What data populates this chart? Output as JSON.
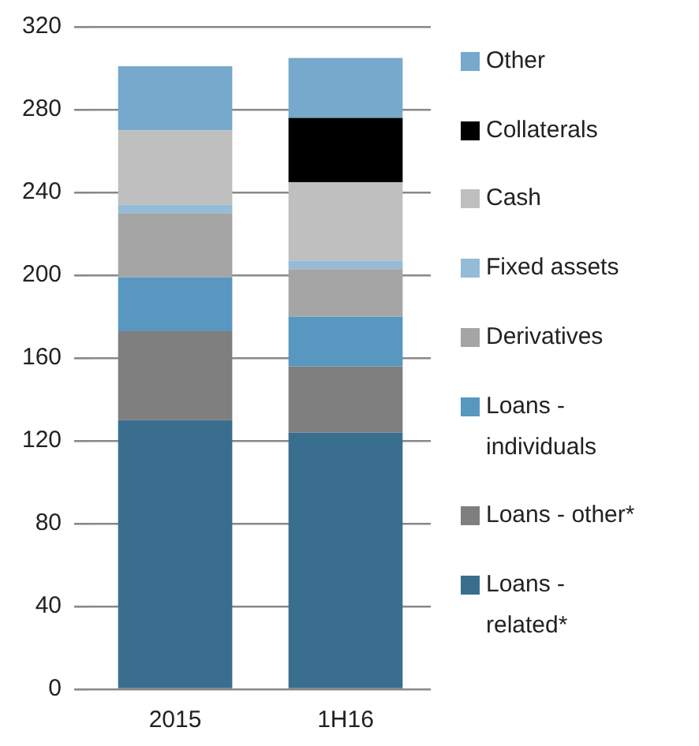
{
  "chart_data": {
    "type": "bar",
    "stacked": true,
    "categories": [
      "2015",
      "1H16"
    ],
    "series": [
      {
        "name": "Loans - related*",
        "color": "#3a6e8f",
        "values": [
          130,
          124
        ]
      },
      {
        "name": "Loans - other*",
        "color": "#7f7f7f",
        "values": [
          43,
          32
        ]
      },
      {
        "name": "Loans - individuals",
        "color": "#5797c0",
        "values": [
          26,
          24
        ]
      },
      {
        "name": "Derivatives",
        "color": "#a5a5a5",
        "values": [
          31,
          23
        ]
      },
      {
        "name": "Fixed assets",
        "color": "#94bcd6",
        "values": [
          4,
          4
        ]
      },
      {
        "name": "Cash",
        "color": "#bfbfbf",
        "values": [
          36,
          38
        ]
      },
      {
        "name": "Collaterals",
        "color": "#000000",
        "values": [
          null,
          31
        ]
      },
      {
        "name": "Other",
        "color": "#76a9cb",
        "values": [
          31,
          29
        ]
      }
    ],
    "ylim": [
      0,
      320
    ],
    "yticks": [
      0,
      40,
      80,
      120,
      160,
      200,
      240,
      280,
      320
    ],
    "grid": "y",
    "legend": "right"
  }
}
